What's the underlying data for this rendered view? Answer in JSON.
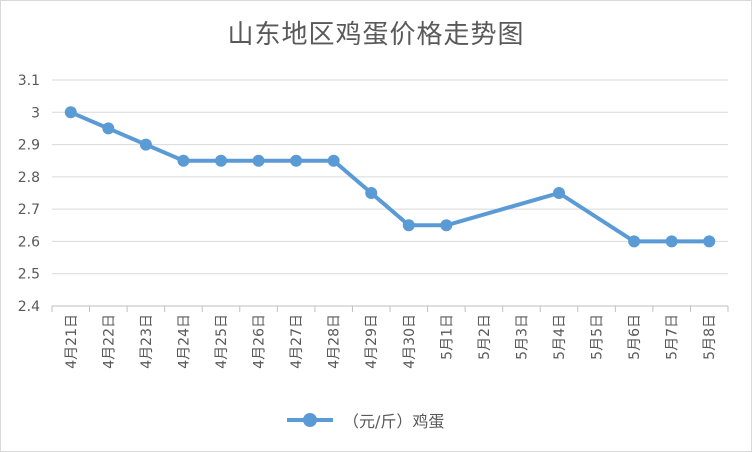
{
  "chart_data": {
    "type": "line",
    "title": "山东地区鸡蛋价格走势图",
    "categories": [
      "4月21日",
      "4月22日",
      "4月23日",
      "4月24日",
      "4月25日",
      "4月26日",
      "4月27日",
      "4月28日",
      "4月29日",
      "4月30日",
      "5月1日",
      "5月2日",
      "5月3日",
      "5月4日",
      "5月5日",
      "5月6日",
      "5月7日",
      "5月8日"
    ],
    "series": [
      {
        "name": "（元/斤）鸡蛋",
        "values": [
          3.0,
          2.95,
          2.9,
          2.85,
          2.85,
          2.85,
          2.85,
          2.85,
          2.75,
          2.65,
          2.65,
          null,
          null,
          2.75,
          null,
          2.6,
          2.6,
          2.6
        ],
        "color": "#5b9bd5"
      }
    ],
    "ylim": [
      2.4,
      3.1
    ],
    "yticks": [
      "3.1",
      "3",
      "2.9",
      "2.8",
      "2.7",
      "2.6",
      "2.5",
      "2.4"
    ],
    "grid": true,
    "legend_position": "bottom",
    "span_gaps": true
  }
}
